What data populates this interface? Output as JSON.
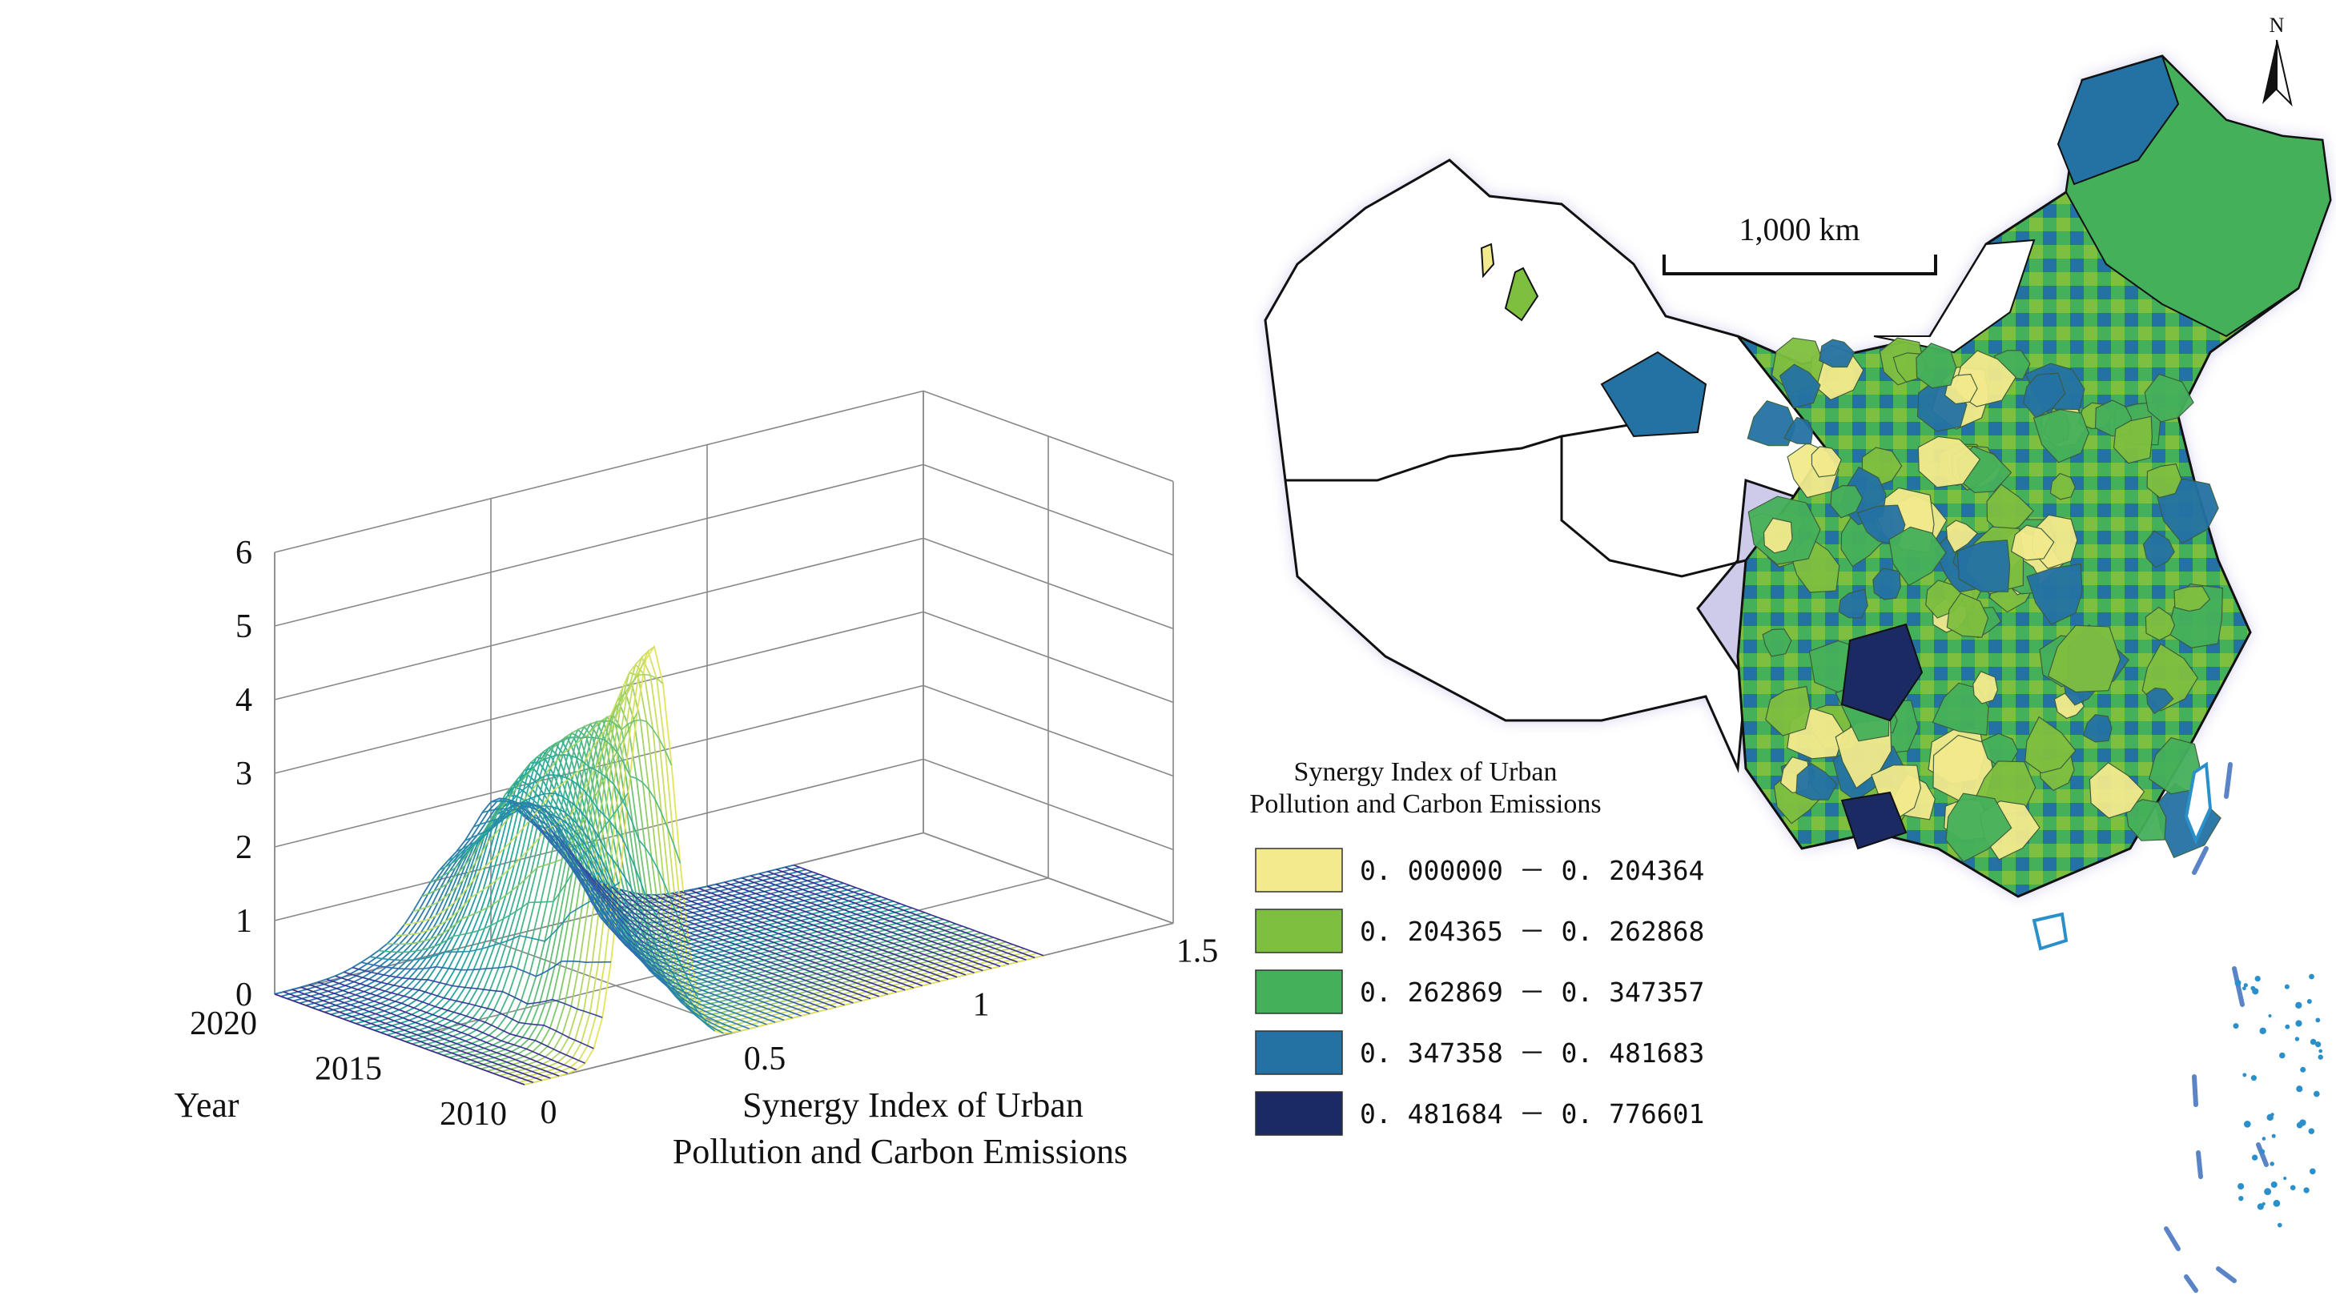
{
  "chart_data": [
    {
      "type": "surface",
      "title": "",
      "xlabel": "Synergy Index of Urban Pollution and Carbon Emissions",
      "ylabel": "Year",
      "zlabel": "",
      "x_ticks": [
        "0",
        "0.5",
        "1",
        "1.5"
      ],
      "y_ticks": [
        "2010",
        "2015",
        "2020"
      ],
      "z_ticks": [
        "0",
        "1",
        "2",
        "3",
        "4",
        "5",
        "6"
      ],
      "xlim": [
        0,
        1.5
      ],
      "ylim": [
        2010,
        2020
      ],
      "zlim": [
        0,
        6
      ],
      "colormap": [
        "#3a2a8f",
        "#2f6fb0",
        "#23a7a0",
        "#7cc86a",
        "#f4e85a"
      ],
      "series": [
        {
          "year": 2010,
          "peak_x": 0.29,
          "peak_density": 5.8,
          "width": 0.052
        },
        {
          "year": 2011,
          "peak_x": 0.3,
          "peak_density": 5.2,
          "width": 0.058
        },
        {
          "year": 2012,
          "peak_x": 0.31,
          "peak_density": 4.3,
          "width": 0.066
        },
        {
          "year": 2013,
          "peak_x": 0.33,
          "peak_density": 3.9,
          "width": 0.072
        },
        {
          "year": 2014,
          "peak_x": 0.34,
          "peak_density": 3.6,
          "width": 0.08
        },
        {
          "year": 2015,
          "peak_x": 0.36,
          "peak_density": 3.3,
          "width": 0.088
        },
        {
          "year": 2016,
          "peak_x": 0.38,
          "peak_density": 3.0,
          "width": 0.095
        },
        {
          "year": 2017,
          "peak_x": 0.4,
          "peak_density": 2.6,
          "width": 0.105
        },
        {
          "year": 2018,
          "peak_x": 0.44,
          "peak_density": 2.2,
          "width": 0.118
        },
        {
          "year": 2019,
          "peak_x": 0.48,
          "peak_density": 1.9,
          "width": 0.13
        },
        {
          "year": 2020,
          "peak_x": 0.52,
          "peak_density": 1.8,
          "width": 0.14
        }
      ]
    }
  ],
  "map": {
    "north_label": "N",
    "scale_label": "1,000 km",
    "legend_title_line1": "Synergy Index of Urban",
    "legend_title_line2": "Pollution and Carbon Emissions",
    "legend": [
      {
        "label": "0. 000000 － 0. 204364",
        "color": "#f2ea8c"
      },
      {
        "label": "0. 204365 － 0. 262868",
        "color": "#7fbf3f"
      },
      {
        "label": "0. 262869 － 0. 347357",
        "color": "#45b05a"
      },
      {
        "label": "0. 347358 － 0. 481683",
        "color": "#2472a4"
      },
      {
        "label": "0. 481684 － 0. 776601",
        "color": "#1b2a63"
      }
    ]
  }
}
